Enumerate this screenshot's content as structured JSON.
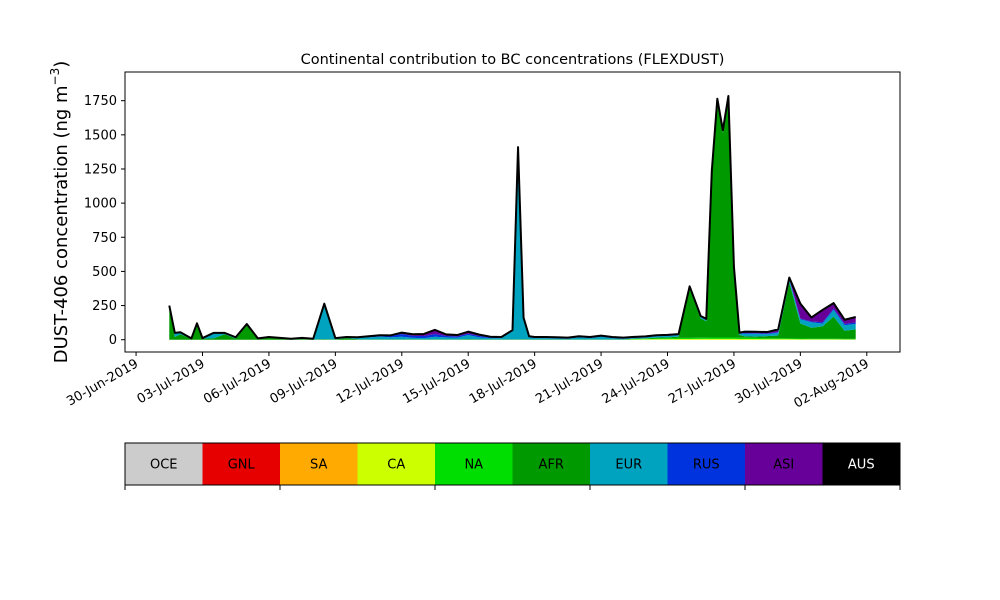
{
  "chart_data": {
    "type": "area",
    "stacked": true,
    "title": "Continental contribution to BC concentrations (FLEXDUST)",
    "ylabel_main": "DUST-406 concentration (ng m",
    "ylabel_sup": "−3",
    "ylabel_close": ")",
    "xlabel": "",
    "xlim": [
      "2019-06-29T12:00",
      "2019-08-03T12:00"
    ],
    "ylim": [
      -90,
      1960
    ],
    "yticks": [
      0,
      250,
      500,
      750,
      1000,
      1250,
      1500,
      1750
    ],
    "ytick_labels": [
      "0",
      "250",
      "500",
      "750",
      "1000",
      "1250",
      "1500",
      "1750"
    ],
    "xticks": [
      "2019-06-30",
      "2019-07-03",
      "2019-07-06",
      "2019-07-09",
      "2019-07-12",
      "2019-07-15",
      "2019-07-18",
      "2019-07-21",
      "2019-07-24",
      "2019-07-27",
      "2019-07-30",
      "2019-08-02"
    ],
    "xtick_labels": [
      "30-Jun-2019",
      "03-Jul-2019",
      "06-Jul-2019",
      "09-Jul-2019",
      "12-Jul-2019",
      "15-Jul-2019",
      "18-Jul-2019",
      "21-Jul-2019",
      "24-Jul-2019",
      "27-Jul-2019",
      "30-Jul-2019",
      "02-Aug-2019"
    ],
    "x": [
      "2019-07-01T12:00",
      "2019-07-01T18:00",
      "2019-07-02T00:00",
      "2019-07-02T12:00",
      "2019-07-02T18:00",
      "2019-07-03T00:00",
      "2019-07-03T12:00",
      "2019-07-04T00:00",
      "2019-07-04T12:00",
      "2019-07-05T00:00",
      "2019-07-05T12:00",
      "2019-07-06T00:00",
      "2019-07-07T00:00",
      "2019-07-07T12:00",
      "2019-07-08T00:00",
      "2019-07-08T12:00",
      "2019-07-09T00:00",
      "2019-07-09T12:00",
      "2019-07-10T00:00",
      "2019-07-10T12:00",
      "2019-07-11T00:00",
      "2019-07-11T12:00",
      "2019-07-12T00:00",
      "2019-07-12T12:00",
      "2019-07-13T00:00",
      "2019-07-13T12:00",
      "2019-07-14T00:00",
      "2019-07-14T12:00",
      "2019-07-15T00:00",
      "2019-07-15T12:00",
      "2019-07-16T00:00",
      "2019-07-16T12:00",
      "2019-07-17T00:00",
      "2019-07-17T06:00",
      "2019-07-17T12:00",
      "2019-07-17T18:00",
      "2019-07-18T00:00",
      "2019-07-18T12:00",
      "2019-07-19T00:00",
      "2019-07-19T12:00",
      "2019-07-20T00:00",
      "2019-07-20T12:00",
      "2019-07-21T00:00",
      "2019-07-21T12:00",
      "2019-07-22T00:00",
      "2019-07-22T12:00",
      "2019-07-23T00:00",
      "2019-07-23T12:00",
      "2019-07-24T00:00",
      "2019-07-24T12:00",
      "2019-07-25T00:00",
      "2019-07-25T12:00",
      "2019-07-25T18:00",
      "2019-07-26T00:00",
      "2019-07-26T06:00",
      "2019-07-26T12:00",
      "2019-07-26T18:00",
      "2019-07-27T00:00",
      "2019-07-27T06:00",
      "2019-07-27T12:00",
      "2019-07-28T00:00",
      "2019-07-28T12:00",
      "2019-07-29T00:00",
      "2019-07-29T12:00",
      "2019-07-30T00:00",
      "2019-07-30T12:00",
      "2019-07-31T00:00",
      "2019-07-31T12:00",
      "2019-08-01T00:00",
      "2019-08-01T12:00"
    ],
    "series": [
      {
        "name": "OCE",
        "values": [
          0,
          0,
          0,
          0,
          0,
          0,
          0,
          0,
          0,
          0,
          0,
          0,
          0,
          0,
          0,
          0,
          0,
          0,
          0,
          0,
          0,
          0,
          0,
          0,
          0,
          0,
          0,
          0,
          0,
          0,
          0,
          0,
          0,
          0,
          0,
          0,
          0,
          0,
          0,
          0,
          0,
          0,
          0,
          0,
          0,
          0,
          0,
          0,
          0,
          0,
          0,
          0,
          0,
          0,
          0,
          0,
          0,
          0,
          0,
          0,
          0,
          0,
          0,
          0,
          0,
          0,
          0,
          0,
          0,
          0
        ]
      },
      {
        "name": "GNL",
        "values": [
          0,
          0,
          0,
          0,
          0,
          0,
          0,
          0,
          0,
          0,
          0,
          0,
          0,
          0,
          0,
          0,
          0,
          0,
          0,
          0,
          0,
          0,
          0,
          0,
          0,
          0,
          0,
          0,
          0,
          0,
          0,
          0,
          0,
          0,
          0,
          0,
          0,
          0,
          0,
          0,
          0,
          0,
          0,
          0,
          0,
          0,
          0,
          0,
          0,
          0,
          0,
          0,
          0,
          0,
          0,
          0,
          0,
          0,
          0,
          0,
          0,
          0,
          0,
          0,
          0,
          0,
          0,
          0,
          0,
          0
        ]
      },
      {
        "name": "SA",
        "values": [
          0,
          0,
          0,
          0,
          0,
          0,
          0,
          0,
          0,
          0,
          0,
          0,
          0,
          0,
          0,
          0,
          0,
          0,
          0,
          0,
          0,
          0,
          0,
          0,
          0,
          0,
          0,
          0,
          0,
          0,
          0,
          0,
          0,
          0,
          0,
          0,
          0,
          0,
          0,
          0,
          0,
          0,
          0,
          0,
          0,
          0,
          0,
          0,
          0,
          0,
          0,
          0,
          0,
          0,
          0,
          0,
          0,
          0,
          0,
          0,
          0,
          0,
          0,
          0,
          0,
          0,
          0,
          0,
          0,
          0
        ]
      },
      {
        "name": "CA",
        "values": [
          0,
          0,
          0,
          0,
          0,
          0,
          0,
          0,
          0,
          0,
          0,
          0,
          0,
          0,
          0,
          0,
          0,
          0,
          0,
          0,
          0,
          0,
          0,
          0,
          0,
          0,
          0,
          0,
          0,
          0,
          0,
          0,
          0,
          0,
          0,
          0,
          0,
          0,
          0,
          0,
          0,
          0,
          0,
          0,
          0,
          2,
          3,
          4,
          4,
          5,
          5,
          6,
          6,
          6,
          6,
          6,
          6,
          6,
          5,
          5,
          5,
          4,
          4,
          4,
          3,
          3,
          3,
          3,
          2,
          2
        ]
      },
      {
        "name": "NA",
        "values": [
          0,
          0,
          0,
          0,
          0,
          0,
          0,
          0,
          0,
          0,
          0,
          0,
          0,
          0,
          0,
          0,
          0,
          0,
          0,
          0,
          0,
          0,
          0,
          0,
          0,
          0,
          0,
          0,
          0,
          0,
          0,
          0,
          0,
          0,
          0,
          0,
          0,
          0,
          0,
          0,
          0,
          0,
          0,
          0,
          0,
          3,
          4,
          6,
          7,
          8,
          8,
          9,
          9,
          10,
          10,
          10,
          10,
          10,
          9,
          9,
          8,
          7,
          7,
          6,
          6,
          5,
          5,
          5,
          4,
          4
        ]
      },
      {
        "name": "AFR",
        "values": [
          250,
          20,
          40,
          5,
          110,
          8,
          10,
          40,
          8,
          110,
          5,
          15,
          2,
          5,
          2,
          4,
          2,
          12,
          3,
          2,
          3,
          2,
          2,
          3,
          2,
          2,
          2,
          2,
          4,
          2,
          2,
          2,
          2,
          2,
          3,
          2,
          2,
          2,
          2,
          2,
          2,
          2,
          2,
          2,
          2,
          3,
          4,
          5,
          6,
          10,
          360,
          140,
          120,
          1200,
          1730,
          1500,
          1750,
          500,
          20,
          10,
          10,
          15,
          20,
          410,
          110,
          80,
          90,
          160,
          60,
          70
        ]
      },
      {
        "name": "EUR",
        "values": [
          0,
          30,
          15,
          5,
          10,
          4,
          40,
          10,
          10,
          5,
          5,
          5,
          5,
          8,
          5,
          260,
          10,
          8,
          15,
          15,
          20,
          15,
          20,
          10,
          10,
          20,
          15,
          12,
          30,
          15,
          10,
          10,
          60,
          1400,
          150,
          15,
          10,
          10,
          8,
          5,
          15,
          10,
          20,
          10,
          5,
          5,
          5,
          10,
          10,
          10,
          10,
          10,
          10,
          10,
          10,
          10,
          10,
          10,
          10,
          20,
          20,
          15,
          20,
          20,
          30,
          40,
          20,
          50,
          40,
          40
        ]
      },
      {
        "name": "RUS",
        "values": [
          0,
          0,
          0,
          0,
          0,
          0,
          0,
          0,
          0,
          0,
          0,
          0,
          0,
          0,
          0,
          0,
          0,
          0,
          0,
          5,
          5,
          10,
          20,
          15,
          15,
          20,
          10,
          10,
          10,
          10,
          5,
          5,
          5,
          5,
          5,
          5,
          5,
          5,
          5,
          5,
          5,
          5,
          5,
          5,
          5,
          5,
          5,
          5,
          5,
          5,
          5,
          5,
          5,
          5,
          5,
          5,
          5,
          5,
          5,
          5,
          5,
          5,
          5,
          5,
          5,
          5,
          10,
          10,
          10,
          10
        ]
      },
      {
        "name": "ASI",
        "values": [
          0,
          0,
          0,
          0,
          0,
          0,
          0,
          0,
          0,
          0,
          0,
          0,
          0,
          0,
          0,
          0,
          0,
          0,
          0,
          3,
          5,
          5,
          10,
          12,
          15,
          30,
          12,
          10,
          15,
          10,
          5,
          3,
          3,
          3,
          3,
          3,
          3,
          3,
          3,
          3,
          3,
          3,
          3,
          3,
          3,
          3,
          3,
          3,
          3,
          3,
          3,
          3,
          3,
          3,
          3,
          3,
          3,
          3,
          3,
          10,
          10,
          10,
          20,
          10,
          110,
          30,
          90,
          40,
          30,
          40
        ]
      },
      {
        "name": "AUS",
        "values": [
          0,
          0,
          0,
          0,
          0,
          0,
          0,
          0,
          0,
          0,
          0,
          0,
          0,
          0,
          0,
          0,
          0,
          0,
          0,
          0,
          0,
          0,
          0,
          0,
          0,
          0,
          0,
          0,
          0,
          0,
          0,
          0,
          0,
          0,
          0,
          0,
          0,
          0,
          0,
          0,
          0,
          0,
          0,
          0,
          0,
          0,
          0,
          0,
          0,
          0,
          0,
          0,
          0,
          0,
          0,
          0,
          0,
          0,
          0,
          0,
          0,
          0,
          0,
          0,
          0,
          0,
          0,
          0,
          0,
          0
        ]
      }
    ],
    "legend_placement": "bottom",
    "legend": [
      {
        "label": "OCE",
        "color": "#cccccc",
        "text_color": "#000000"
      },
      {
        "label": "GNL",
        "color": "#e60000",
        "text_color": "#000000"
      },
      {
        "label": "SA",
        "color": "#ffaa00",
        "text_color": "#000000"
      },
      {
        "label": "CA",
        "color": "#ccff00",
        "text_color": "#000000"
      },
      {
        "label": "NA",
        "color": "#00dd00",
        "text_color": "#000000"
      },
      {
        "label": "AFR",
        "color": "#009900",
        "text_color": "#000000"
      },
      {
        "label": "EUR",
        "color": "#00a3bf",
        "text_color": "#000000"
      },
      {
        "label": "RUS",
        "color": "#0033dd",
        "text_color": "#000000"
      },
      {
        "label": "ASI",
        "color": "#660099",
        "text_color": "#000000"
      },
      {
        "label": "AUS",
        "color": "#000000",
        "text_color": "#ffffff"
      }
    ],
    "grid": false
  }
}
